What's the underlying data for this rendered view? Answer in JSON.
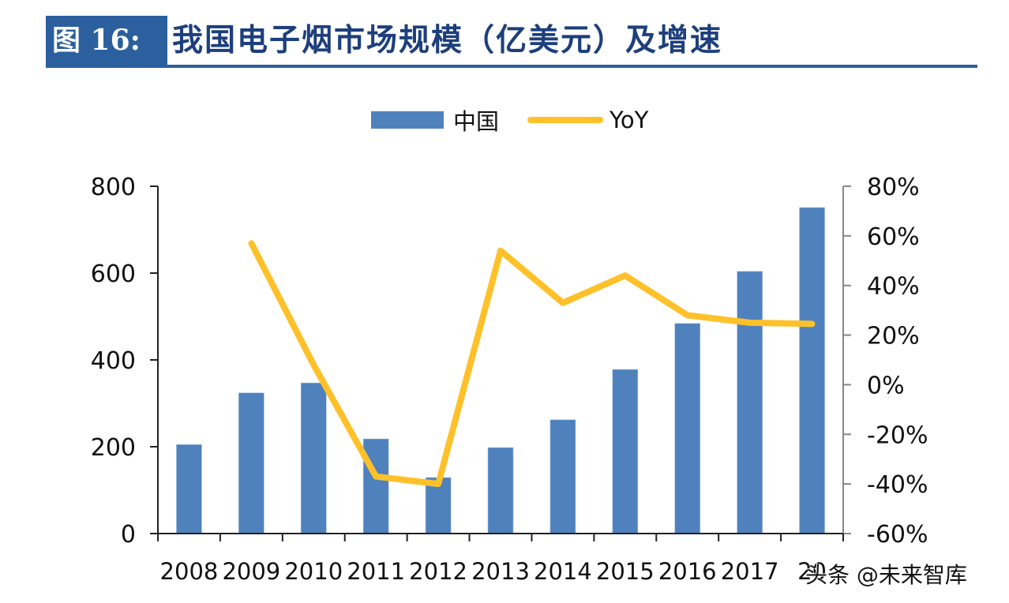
{
  "header": {
    "figure_label": "图 16:",
    "title": "我国电子烟市场规模（亿美元）及增速"
  },
  "legend": {
    "bar_label": "中国",
    "line_label": "YoY"
  },
  "watermark": "头条 @未来智库",
  "colors": {
    "bar": "#4f81bd",
    "line": "#ffc12a",
    "title_bg": "#2b5f9e",
    "title_text": "#1d3f7c"
  },
  "chart_data": {
    "type": "bar",
    "title": "我国电子烟市场规模（亿美元）及增速",
    "categories": [
      "2008",
      "2009",
      "2010",
      "2011",
      "2012",
      "2013",
      "2014",
      "2015",
      "2016",
      "2017",
      "2018"
    ],
    "x_tick_labels_visible": [
      "2008",
      "2009",
      "2010",
      "2011",
      "2012",
      "2013",
      "2014",
      "2015",
      "2016",
      "2017",
      "20"
    ],
    "series": [
      {
        "name": "中国",
        "type": "bar",
        "axis": "left",
        "values": [
          205,
          324,
          347,
          218,
          129,
          198,
          262,
          378,
          484,
          604,
          751
        ]
      },
      {
        "name": "YoY",
        "type": "line",
        "axis": "right",
        "unit": "%",
        "values": [
          null,
          57,
          8,
          -37,
          -40,
          54,
          33,
          44,
          28,
          25,
          24.5
        ]
      }
    ],
    "left_axis": {
      "ylim": [
        0,
        800
      ],
      "ticks": [
        "0",
        "200",
        "400",
        "600",
        "800"
      ]
    },
    "right_axis": {
      "ylim": [
        -60,
        80
      ],
      "ticks": [
        "-60%",
        "-40%",
        "-20%",
        "0%",
        "20%",
        "40%",
        "60%",
        "80%"
      ]
    },
    "xlabel": "",
    "ylabel": "",
    "grid": false,
    "legend_position": "top"
  }
}
